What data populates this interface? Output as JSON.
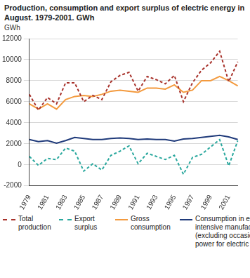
{
  "chart_data": {
    "type": "line",
    "title": "Production, consumption and export surplus of electric energy in August. 1979-2001. GWh",
    "y_label": "GWh",
    "categories": [
      "1979",
      null,
      "1981",
      null,
      "1983",
      null,
      "1985",
      null,
      "1987",
      null,
      "1989",
      null,
      "1991",
      null,
      "1993",
      null,
      "1995",
      null,
      "1997",
      null,
      "1999",
      null,
      "2001",
      null
    ],
    "series": [
      {
        "name": "Total production",
        "color": "#a8322b",
        "line_style": "dashed",
        "values": [
          6700,
          5200,
          6400,
          5800,
          7800,
          7800,
          6000,
          6600,
          6200,
          7900,
          8500,
          8800,
          7000,
          8400,
          8100,
          7700,
          8500,
          6000,
          7800,
          9000,
          9700,
          10800,
          7900,
          9800
        ]
      },
      {
        "name": "Export surplus",
        "color": "#2aa89e",
        "line_style": "dashed",
        "values": [
          800,
          -50,
          600,
          500,
          1600,
          1300,
          -600,
          100,
          -500,
          900,
          1300,
          1800,
          100,
          1100,
          800,
          500,
          900,
          -900,
          700,
          1000,
          1700,
          2400,
          -100,
          2300
        ]
      },
      {
        "name": "Gross consumption",
        "color": "#f39a3e",
        "line_style": "solid",
        "values": [
          5800,
          5300,
          5800,
          5300,
          6200,
          6500,
          6600,
          6500,
          6700,
          7000,
          7100,
          7000,
          6900,
          7300,
          7300,
          7200,
          7600,
          6900,
          7100,
          8000,
          8000,
          8400,
          8000,
          7500
        ]
      },
      {
        "name": "Consumption in energy-intensive manufacturing (excluding occasional power for electric boilers)",
        "color": "#1f3a7a",
        "line_style": "solid",
        "values": [
          2400,
          2200,
          2300,
          2050,
          2300,
          2600,
          2500,
          2400,
          2400,
          2500,
          2550,
          2500,
          2400,
          2450,
          2400,
          2400,
          2250,
          2450,
          2500,
          2600,
          2700,
          2800,
          2650,
          2400
        ]
      }
    ],
    "ylim": [
      -2000,
      12000
    ],
    "yticks": [
      -2000,
      0,
      2000,
      4000,
      6000,
      8000,
      10000,
      12000
    ],
    "grid": true,
    "legend": "bottom"
  }
}
